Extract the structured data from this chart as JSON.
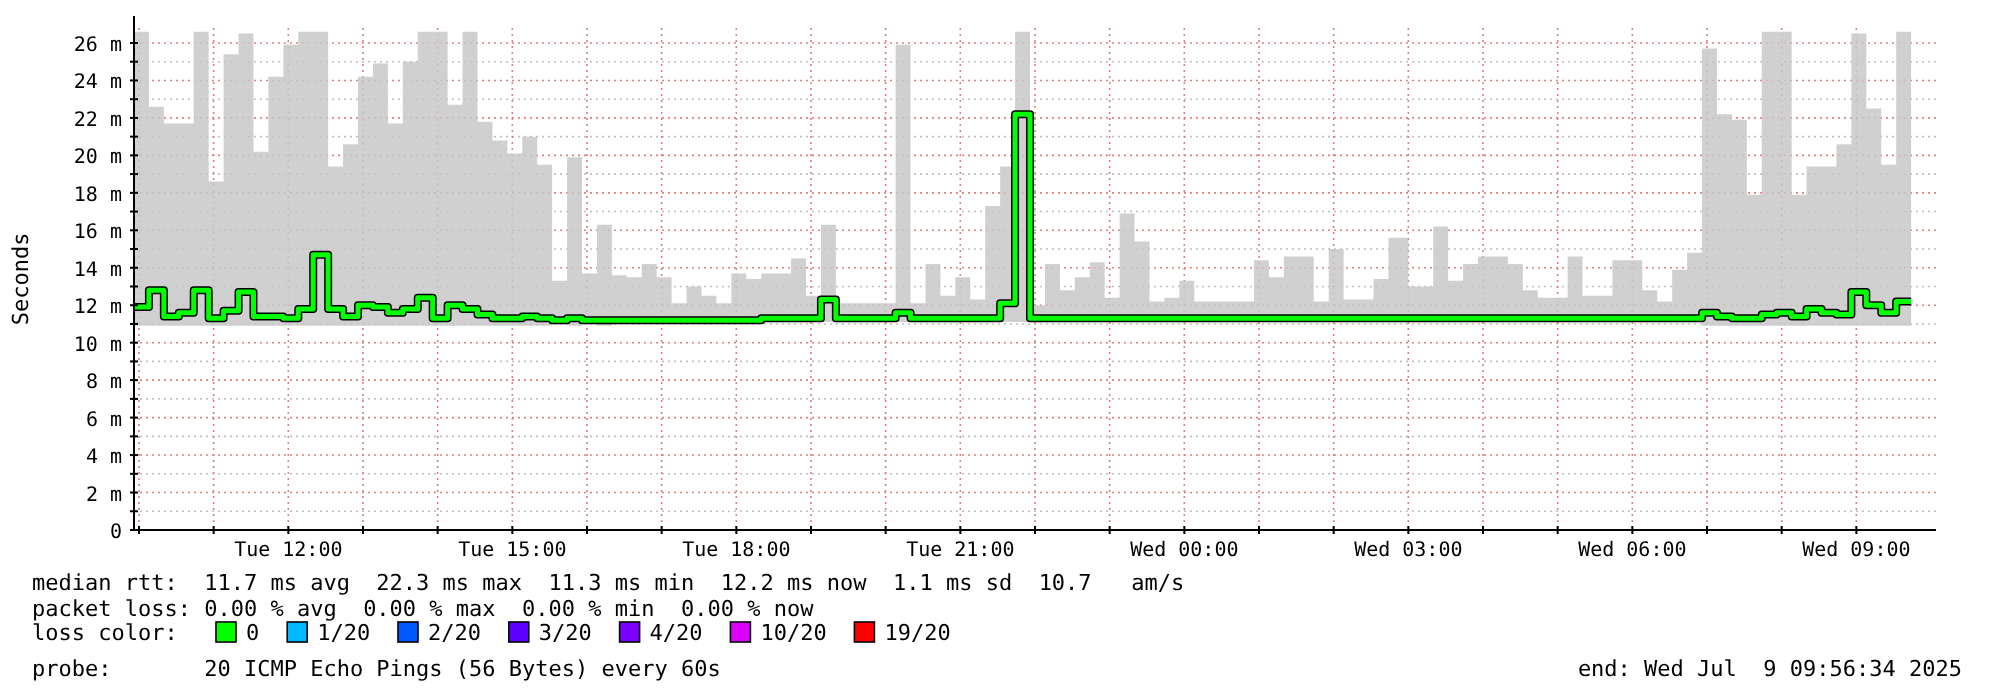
{
  "chart_data": {
    "type": "step",
    "ylabel": "Seconds",
    "legend_title": "loss color:",
    "legend": "bottom",
    "grid": true,
    "xlim": [
      "2025-07-08T09:56",
      "2025-07-09T10:04"
    ],
    "xticks": [
      {
        "value": "2025-07-08T10:00",
        "label": null
      },
      {
        "value": "2025-07-08T11:00",
        "label": null
      },
      {
        "value": "2025-07-08T12:00",
        "label": "Tue 12:00"
      },
      {
        "value": "2025-07-08T13:00",
        "label": null
      },
      {
        "value": "2025-07-08T14:00",
        "label": null
      },
      {
        "value": "2025-07-08T15:00",
        "label": "Tue 15:00"
      },
      {
        "value": "2025-07-08T16:00",
        "label": null
      },
      {
        "value": "2025-07-08T17:00",
        "label": null
      },
      {
        "value": "2025-07-08T18:00",
        "label": "Tue 18:00"
      },
      {
        "value": "2025-07-08T19:00",
        "label": null
      },
      {
        "value": "2025-07-08T20:00",
        "label": null
      },
      {
        "value": "2025-07-08T21:00",
        "label": "Tue 21:00"
      },
      {
        "value": "2025-07-08T22:00",
        "label": null
      },
      {
        "value": "2025-07-08T23:00",
        "label": null
      },
      {
        "value": "2025-07-09T00:00",
        "label": "Wed 00:00"
      },
      {
        "value": "2025-07-09T01:00",
        "label": null
      },
      {
        "value": "2025-07-09T02:00",
        "label": null
      },
      {
        "value": "2025-07-09T03:00",
        "label": "Wed 03:00"
      },
      {
        "value": "2025-07-09T04:00",
        "label": null
      },
      {
        "value": "2025-07-09T05:00",
        "label": null
      },
      {
        "value": "2025-07-09T06:00",
        "label": "Wed 06:00"
      },
      {
        "value": "2025-07-09T07:00",
        "label": null
      },
      {
        "value": "2025-07-09T08:00",
        "label": null
      },
      {
        "value": "2025-07-09T09:00",
        "label": "Wed 09:00"
      }
    ],
    "ylim": [
      0,
      26.8
    ],
    "yticks": [
      0,
      {
        "value": 1,
        "label": null
      },
      {
        "value": 2,
        "label": "2 m"
      },
      {
        "value": 3,
        "label": null
      },
      {
        "value": 4,
        "label": "4 m"
      },
      {
        "value": 5,
        "label": null
      },
      {
        "value": 6,
        "label": "6 m"
      },
      {
        "value": 7,
        "label": null
      },
      {
        "value": 8,
        "label": "8 m"
      },
      {
        "value": 9,
        "label": null
      },
      {
        "value": 10,
        "label": "10 m"
      },
      {
        "value": 11,
        "label": null
      },
      {
        "value": 12,
        "label": "12 m"
      },
      {
        "value": 13,
        "label": null
      },
      {
        "value": 14,
        "label": "14 m"
      },
      {
        "value": 15,
        "label": null
      },
      {
        "value": 16,
        "label": "16 m"
      },
      {
        "value": 17,
        "label": null
      },
      {
        "value": 18,
        "label": "18 m"
      },
      {
        "value": 19,
        "label": null
      },
      {
        "value": 20,
        "label": "20 m"
      },
      {
        "value": 21,
        "label": null
      },
      {
        "value": 22,
        "label": "22 m"
      },
      {
        "value": 23,
        "label": null
      },
      {
        "value": 24,
        "label": "24 m"
      },
      {
        "value": 25,
        "label": null
      },
      {
        "value": 26,
        "label": "26 m"
      }
    ],
    "x": [
      "2025-07-08T09:56",
      "2025-07-08T10:08",
      "2025-07-08T10:20",
      "2025-07-08T10:32",
      "2025-07-08T10:44",
      "2025-07-08T10:56",
      "2025-07-08T11:08",
      "2025-07-08T11:20",
      "2025-07-08T11:32",
      "2025-07-08T11:44",
      "2025-07-08T11:56",
      "2025-07-08T12:08",
      "2025-07-08T12:20",
      "2025-07-08T12:32",
      "2025-07-08T12:44",
      "2025-07-08T12:56",
      "2025-07-08T13:08",
      "2025-07-08T13:20",
      "2025-07-08T13:32",
      "2025-07-08T13:44",
      "2025-07-08T13:56",
      "2025-07-08T14:08",
      "2025-07-08T14:20",
      "2025-07-08T14:32",
      "2025-07-08T14:44",
      "2025-07-08T14:56",
      "2025-07-08T15:08",
      "2025-07-08T15:20",
      "2025-07-08T15:32",
      "2025-07-08T15:44",
      "2025-07-08T15:56",
      "2025-07-08T16:08",
      "2025-07-08T16:20",
      "2025-07-08T16:32",
      "2025-07-08T16:44",
      "2025-07-08T16:56",
      "2025-07-08T17:08",
      "2025-07-08T17:20",
      "2025-07-08T17:32",
      "2025-07-08T17:44",
      "2025-07-08T17:56",
      "2025-07-08T18:08",
      "2025-07-08T18:20",
      "2025-07-08T18:44",
      "2025-07-08T18:56",
      "2025-07-08T19:08",
      "2025-07-08T19:20",
      "2025-07-08T20:08",
      "2025-07-08T20:20",
      "2025-07-08T20:32",
      "2025-07-08T20:44",
      "2025-07-08T20:56",
      "2025-07-08T21:08",
      "2025-07-08T21:20",
      "2025-07-08T21:32",
      "2025-07-08T21:44",
      "2025-07-08T21:56",
      "2025-07-08T22:08",
      "2025-07-08T22:20",
      "2025-07-08T22:32",
      "2025-07-08T22:44",
      "2025-07-08T22:56",
      "2025-07-08T23:08",
      "2025-07-08T23:20",
      "2025-07-08T23:32",
      "2025-07-08T23:44",
      "2025-07-08T23:56",
      "2025-07-09T00:08",
      "2025-07-09T00:56",
      "2025-07-09T01:08",
      "2025-07-09T01:20",
      "2025-07-09T01:44",
      "2025-07-09T01:56",
      "2025-07-09T02:08",
      "2025-07-09T02:32",
      "2025-07-09T02:44",
      "2025-07-09T03:00",
      "2025-07-09T03:20",
      "2025-07-09T03:32",
      "2025-07-09T03:44",
      "2025-07-09T03:56",
      "2025-07-09T04:20",
      "2025-07-09T04:32",
      "2025-07-09T04:44",
      "2025-07-09T05:08",
      "2025-07-09T05:20",
      "2025-07-09T05:44",
      "2025-07-09T06:08",
      "2025-07-09T06:20",
      "2025-07-09T06:32",
      "2025-07-09T06:44",
      "2025-07-09T06:56",
      "2025-07-09T07:08",
      "2025-07-09T07:20",
      "2025-07-09T07:32",
      "2025-07-09T07:44",
      "2025-07-09T07:56",
      "2025-07-09T08:08",
      "2025-07-09T08:20",
      "2025-07-09T08:32",
      "2025-07-09T08:44",
      "2025-07-09T08:56",
      "2025-07-09T09:08",
      "2025-07-09T09:20",
      "2025-07-09T09:32",
      "2025-07-09T09:44"
    ],
    "series": [
      {
        "name": "0",
        "color": "#00ff00",
        "values": [
          11.9,
          12.8,
          11.4,
          11.6,
          12.8,
          11.3,
          11.7,
          12.7,
          11.4,
          11.4,
          11.3,
          11.8,
          14.7,
          11.8,
          11.4,
          12.0,
          11.9,
          11.6,
          11.8,
          12.4,
          11.3,
          12.0,
          11.8,
          11.5,
          11.3,
          11.3,
          11.4,
          11.3,
          11.2,
          11.3,
          11.2,
          11.2,
          11.2,
          11.2,
          11.2,
          11.2,
          11.2,
          11.2,
          11.2,
          11.2,
          11.2,
          11.2,
          11.3,
          11.3,
          11.3,
          12.3,
          11.3,
          11.6,
          11.3,
          11.3,
          11.3,
          11.3,
          11.3,
          11.3,
          12.1,
          22.2,
          11.3,
          11.3,
          11.3,
          11.3,
          11.3,
          11.3,
          11.3,
          11.3,
          11.3,
          11.3,
          11.3,
          11.3,
          11.3,
          11.3,
          11.3,
          11.3,
          11.3,
          11.3,
          11.3,
          11.3,
          11.3,
          11.3,
          11.3,
          11.3,
          11.3,
          11.3,
          11.3,
          11.3,
          11.3,
          11.3,
          11.3,
          11.3,
          11.3,
          11.3,
          11.3,
          11.6,
          11.4,
          11.3,
          11.3,
          11.5,
          11.6,
          11.4,
          11.8,
          11.6,
          11.5,
          12.7,
          12.0,
          11.6,
          12.2,
          12.2
        ],
        "lower": [
          10.9,
          10.9,
          10.9,
          10.9,
          10.9,
          10.9,
          10.9,
          10.9,
          10.9,
          10.9,
          10.9,
          10.9,
          10.9,
          10.9,
          10.9,
          10.9,
          10.9,
          10.9,
          10.9,
          10.9,
          10.9,
          10.9,
          10.9,
          10.9,
          10.9,
          10.9,
          10.9,
          10.9,
          11.1,
          10.9,
          11.1,
          10.9,
          11.1,
          11.1,
          11.1,
          11.1,
          11.1,
          11.1,
          11.1,
          11.1,
          11.1,
          11.1,
          11.1,
          11.1,
          11.1,
          11.1,
          11.1,
          11.1,
          11.1,
          11.1,
          11.1,
          11.1,
          11.1,
          11.1,
          11.1,
          11.1,
          11.1,
          11.1,
          11.1,
          11.1,
          11.1,
          11.1,
          11.1,
          11.1,
          11.1,
          11.1,
          11.1,
          11.1,
          11.1,
          11.1,
          11.1,
          11.1,
          11.1,
          11.1,
          11.1,
          11.1,
          11.1,
          11.1,
          11.1,
          11.1,
          11.1,
          11.1,
          11.1,
          11.1,
          11.1,
          11.1,
          11.1,
          11.1,
          11.1,
          11.1,
          11.1,
          10.9,
          10.9,
          10.9,
          10.9,
          10.9,
          10.9,
          10.9,
          10.9,
          10.9,
          10.9,
          10.9,
          10.9,
          10.9,
          10.9,
          10.9
        ],
        "upper": [
          26.6,
          22.6,
          21.7,
          21.7,
          26.6,
          18.6,
          25.4,
          26.5,
          20.2,
          24.2,
          25.9,
          26.6,
          26.6,
          19.4,
          20.6,
          24.2,
          24.9,
          21.7,
          25.0,
          26.6,
          26.6,
          22.7,
          26.6,
          21.8,
          20.8,
          20.1,
          21.0,
          19.5,
          13.3,
          19.9,
          13.7,
          16.3,
          13.6,
          13.5,
          14.2,
          13.5,
          12.1,
          13.0,
          12.5,
          12.1,
          13.7,
          13.4,
          13.7,
          14.5,
          12.5,
          16.3,
          12.1,
          25.9,
          12.1,
          14.2,
          12.5,
          13.5,
          12.3,
          17.3,
          19.4,
          26.6,
          12.0,
          14.2,
          12.8,
          13.5,
          14.3,
          12.4,
          16.9,
          15.4,
          12.2,
          12.4,
          13.3,
          12.2,
          14.4,
          13.5,
          14.6,
          12.2,
          15.0,
          12.3,
          13.4,
          15.6,
          13.0,
          16.2,
          13.3,
          14.2,
          14.6,
          14.2,
          12.8,
          12.4,
          14.6,
          12.5,
          14.4,
          12.8,
          12.2,
          13.9,
          14.8,
          25.7,
          22.2,
          21.9,
          17.9,
          26.6,
          26.6,
          17.9,
          19.4,
          19.4,
          20.6,
          26.5,
          22.5,
          19.5,
          26.6,
          26.6
        ]
      },
      {
        "name": "1/20",
        "color": "#00b8ff",
        "values": [
          null,
          null,
          null,
          null,
          null,
          null,
          null,
          null,
          null,
          null,
          null,
          null,
          null,
          null,
          null,
          null,
          null,
          null,
          null,
          null,
          null,
          null,
          null,
          null,
          null,
          null,
          null,
          null,
          null,
          null,
          null,
          null,
          null,
          null,
          null,
          null,
          null,
          null,
          null,
          null,
          null,
          null,
          null,
          null,
          null,
          null,
          null,
          null,
          null,
          null,
          null,
          null,
          null,
          null,
          null,
          null,
          null,
          null,
          null,
          null,
          null,
          null,
          null,
          null,
          null,
          null,
          null,
          null,
          null,
          null,
          null,
          null,
          null,
          null,
          null,
          null,
          null,
          null,
          null,
          null,
          null,
          null,
          null,
          null,
          null,
          null,
          null,
          null,
          null,
          null,
          null,
          null,
          null,
          null,
          null,
          null,
          null,
          null,
          null,
          null,
          null,
          null,
          null,
          null,
          null,
          null
        ]
      },
      {
        "name": "2/20",
        "color": "#0059ff",
        "values": [
          null,
          null,
          null,
          null,
          null,
          null,
          null,
          null,
          null,
          null,
          null,
          null,
          null,
          null,
          null,
          null,
          null,
          null,
          null,
          null,
          null,
          null,
          null,
          null,
          null,
          null,
          null,
          null,
          null,
          null,
          null,
          null,
          null,
          null,
          null,
          null,
          null,
          null,
          null,
          null,
          null,
          null,
          null,
          null,
          null,
          null,
          null,
          null,
          null,
          null,
          null,
          null,
          null,
          null,
          null,
          null,
          null,
          null,
          null,
          null,
          null,
          null,
          null,
          null,
          null,
          null,
          null,
          null,
          null,
          null,
          null,
          null,
          null,
          null,
          null,
          null,
          null,
          null,
          null,
          null,
          null,
          null,
          null,
          null,
          null,
          null,
          null,
          null,
          null,
          null,
          null,
          null,
          null,
          null,
          null,
          null,
          null,
          null,
          null,
          null,
          null,
          null,
          null,
          null,
          null,
          null
        ]
      },
      {
        "name": "3/20",
        "color": "#5e00ff",
        "values": [
          null,
          null,
          null,
          null,
          null,
          null,
          null,
          null,
          null,
          null,
          null,
          null,
          null,
          null,
          null,
          null,
          null,
          null,
          null,
          null,
          null,
          null,
          null,
          null,
          null,
          null,
          null,
          null,
          null,
          null,
          null,
          null,
          null,
          null,
          null,
          null,
          null,
          null,
          null,
          null,
          null,
          null,
          null,
          null,
          null,
          null,
          null,
          null,
          null,
          null,
          null,
          null,
          null,
          null,
          null,
          null,
          null,
          null,
          null,
          null,
          null,
          null,
          null,
          null,
          null,
          null,
          null,
          null,
          null,
          null,
          null,
          null,
          null,
          null,
          null,
          null,
          null,
          null,
          null,
          null,
          null,
          null,
          null,
          null,
          null,
          null,
          null,
          null,
          null,
          null,
          null,
          null,
          null,
          null,
          null,
          null,
          null,
          null,
          null,
          null,
          null,
          null,
          null,
          null,
          null,
          null
        ]
      },
      {
        "name": "4/20",
        "color": "#7e00ff",
        "values": [
          null,
          null,
          null,
          null,
          null,
          null,
          null,
          null,
          null,
          null,
          null,
          null,
          null,
          null,
          null,
          null,
          null,
          null,
          null,
          null,
          null,
          null,
          null,
          null,
          null,
          null,
          null,
          null,
          null,
          null,
          null,
          null,
          null,
          null,
          null,
          null,
          null,
          null,
          null,
          null,
          null,
          null,
          null,
          null,
          null,
          null,
          null,
          null,
          null,
          null,
          null,
          null,
          null,
          null,
          null,
          null,
          null,
          null,
          null,
          null,
          null,
          null,
          null,
          null,
          null,
          null,
          null,
          null,
          null,
          null,
          null,
          null,
          null,
          null,
          null,
          null,
          null,
          null,
          null,
          null,
          null,
          null,
          null,
          null,
          null,
          null,
          null,
          null,
          null,
          null,
          null,
          null,
          null,
          null,
          null,
          null,
          null,
          null,
          null,
          null,
          null,
          null,
          null,
          null,
          null,
          null
        ]
      },
      {
        "name": "10/20",
        "color": "#dd00ff",
        "values": [
          null,
          null,
          null,
          null,
          null,
          null,
          null,
          null,
          null,
          null,
          null,
          null,
          null,
          null,
          null,
          null,
          null,
          null,
          null,
          null,
          null,
          null,
          null,
          null,
          null,
          null,
          null,
          null,
          null,
          null,
          null,
          null,
          null,
          null,
          null,
          null,
          null,
          null,
          null,
          null,
          null,
          null,
          null,
          null,
          null,
          null,
          null,
          null,
          null,
          null,
          null,
          null,
          null,
          null,
          null,
          null,
          null,
          null,
          null,
          null,
          null,
          null,
          null,
          null,
          null,
          null,
          null,
          null,
          null,
          null,
          null,
          null,
          null,
          null,
          null,
          null,
          null,
          null,
          null,
          null,
          null,
          null,
          null,
          null,
          null,
          null,
          null,
          null,
          null,
          null,
          null,
          null,
          null,
          null,
          null,
          null,
          null,
          null,
          null,
          null,
          null,
          null,
          null,
          null,
          null,
          null
        ]
      },
      {
        "name": "19/20",
        "color": "#ff0000",
        "values": [
          null,
          null,
          null,
          null,
          null,
          null,
          null,
          null,
          null,
          null,
          null,
          null,
          null,
          null,
          null,
          null,
          null,
          null,
          null,
          null,
          null,
          null,
          null,
          null,
          null,
          null,
          null,
          null,
          null,
          null,
          null,
          null,
          null,
          null,
          null,
          null,
          null,
          null,
          null,
          null,
          null,
          null,
          null,
          null,
          null,
          null,
          null,
          null,
          null,
          null,
          null,
          null,
          null,
          null,
          null,
          null,
          null,
          null,
          null,
          null,
          null,
          null,
          null,
          null,
          null,
          null,
          null,
          null,
          null,
          null,
          null,
          null,
          null,
          null,
          null,
          null,
          null,
          null,
          null,
          null,
          null,
          null,
          null,
          null,
          null,
          null,
          null,
          null,
          null,
          null,
          null,
          null,
          null,
          null,
          null,
          null,
          null,
          null,
          null,
          null,
          null,
          null,
          null,
          null,
          null,
          null
        ]
      }
    ],
    "annotations": [
      "median rtt:  11.7 ms avg  22.3 ms max  11.3 ms min  12.2 ms now  1.1 ms sd  10.7   am/s",
      "packet loss: 0.00 % avg  0.00 % max  0.00 % min  0.00 % now",
      "probe:       20 ICMP Echo Pings (56 Bytes) every 60s",
      "end: Wed Jul  9 09:56:34 2025"
    ]
  }
}
